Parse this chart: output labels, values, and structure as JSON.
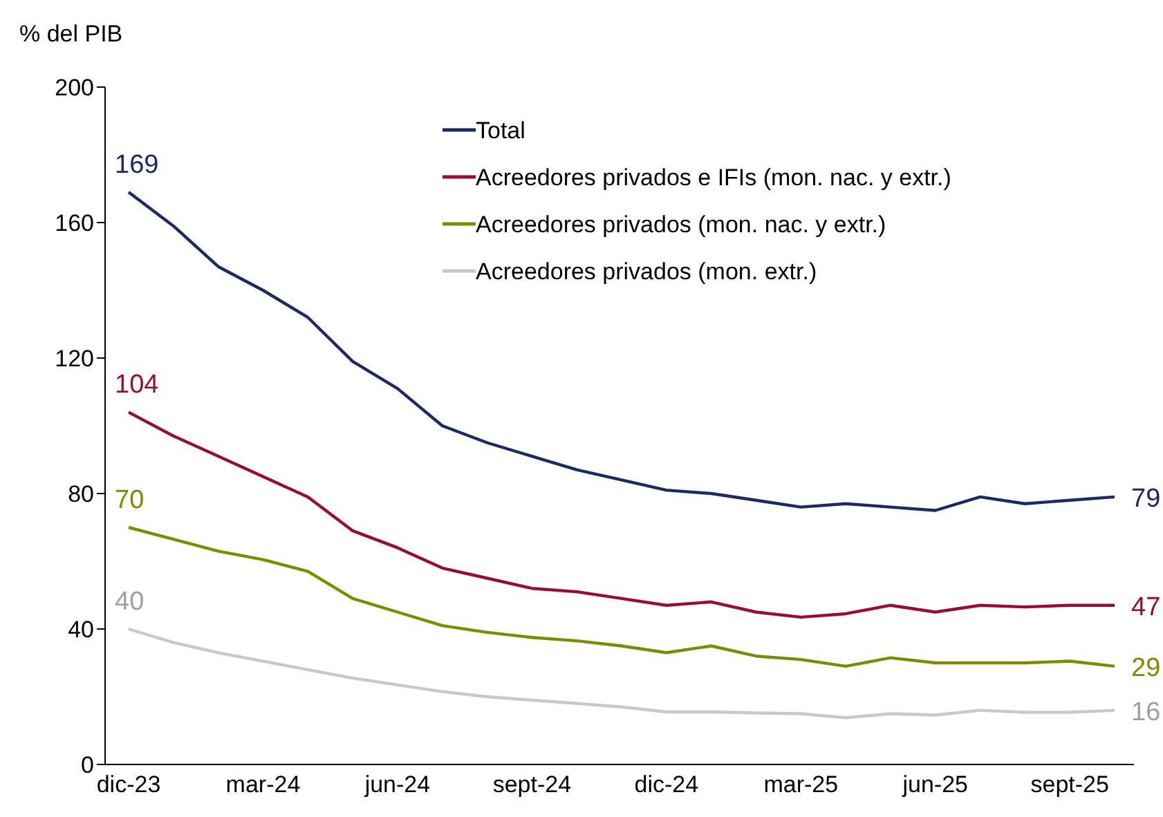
{
  "chart_data": {
    "type": "line",
    "ylabel": "% del PIB",
    "categories": [
      "dic-23",
      null,
      null,
      "mar-24",
      null,
      null,
      "jun-24",
      null,
      null,
      "sept-24",
      null,
      null,
      "dic-24",
      null,
      null,
      "mar-25",
      null,
      null,
      "jun-25",
      null,
      null,
      "sept-25",
      null
    ],
    "series": [
      {
        "name": "Total",
        "color": "#1b2a66",
        "values": [
          169,
          159,
          147,
          140,
          132,
          119,
          111,
          100,
          95,
          91,
          87,
          84,
          81,
          80,
          78,
          76,
          77,
          76,
          75,
          79,
          77,
          78,
          79
        ],
        "value_labels": [
          "169",
          null,
          null,
          null,
          null,
          null,
          null,
          null,
          null,
          null,
          null,
          null,
          null,
          null,
          null,
          null,
          null,
          null,
          null,
          null,
          null,
          null,
          "79"
        ]
      },
      {
        "name": "Acreedores privados e IFIs (mon. nac. y extr.)",
        "color": "#9b0d2f",
        "values": [
          104,
          97,
          91,
          85,
          79,
          69,
          64,
          58,
          55,
          52,
          51,
          49,
          47,
          48,
          45,
          43.5,
          44.5,
          47,
          45,
          47,
          46.5,
          47,
          47
        ],
        "value_labels": [
          "104",
          null,
          null,
          null,
          null,
          null,
          null,
          null,
          null,
          null,
          null,
          null,
          null,
          null,
          null,
          null,
          null,
          null,
          null,
          null,
          null,
          null,
          "47"
        ]
      },
      {
        "name": "Acreedores privados (mon. nac. y extr.)",
        "color": "#808a00",
        "values": [
          70,
          66.5,
          63,
          60.5,
          57,
          49,
          45,
          41,
          39,
          37.5,
          36.5,
          35,
          33,
          35,
          32,
          31,
          29,
          31.5,
          30,
          30,
          30,
          30.5,
          29
        ],
        "value_labels": [
          "70",
          null,
          null,
          null,
          null,
          null,
          null,
          null,
          null,
          null,
          null,
          null,
          null,
          null,
          null,
          null,
          null,
          null,
          null,
          null,
          null,
          null,
          "29"
        ]
      },
      {
        "name": "Acreedores privados (mon. extr.)",
        "color": "#c8c8c8",
        "values": [
          40,
          36,
          33,
          30.5,
          28,
          25.5,
          23.5,
          21.5,
          20,
          19,
          18,
          17,
          15.5,
          15.5,
          15.2,
          15,
          13.8,
          15,
          14.6,
          16,
          15.4,
          15.4,
          16
        ],
        "value_labels": [
          "40",
          null,
          null,
          null,
          null,
          null,
          null,
          null,
          null,
          null,
          null,
          null,
          null,
          null,
          null,
          null,
          null,
          null,
          null,
          null,
          null,
          null,
          "16"
        ]
      }
    ],
    "ylim": [
      0,
      200
    ],
    "yticks": [
      0,
      40,
      80,
      120,
      160,
      200
    ],
    "grid": false,
    "legend": "top",
    "marker": "none",
    "line_style": "solid"
  }
}
